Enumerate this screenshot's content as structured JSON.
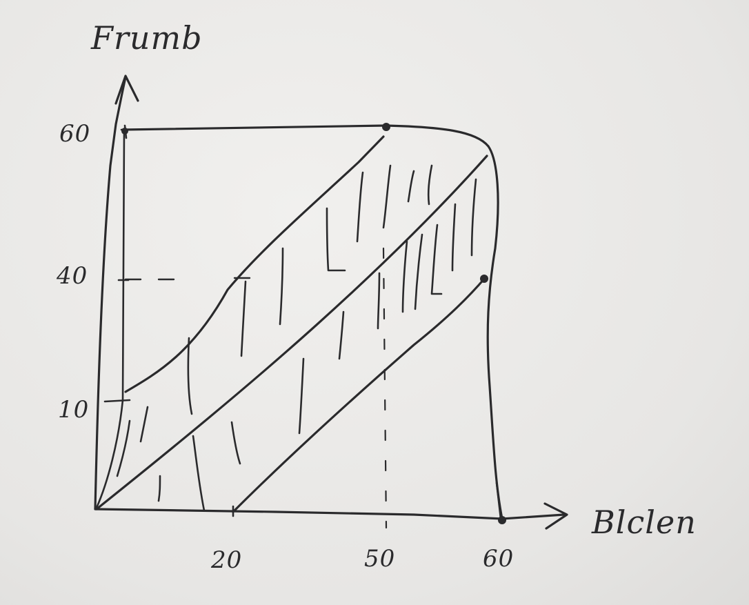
{
  "diagram": {
    "y_axis_label": "Frumb",
    "x_axis_label": "Blclen",
    "y_ticks": [
      "60",
      "40",
      "10"
    ],
    "x_ticks": [
      "20",
      "50",
      "60"
    ],
    "ink_color": "#2a2a2c",
    "paper_color": "#e9e8e6"
  }
}
